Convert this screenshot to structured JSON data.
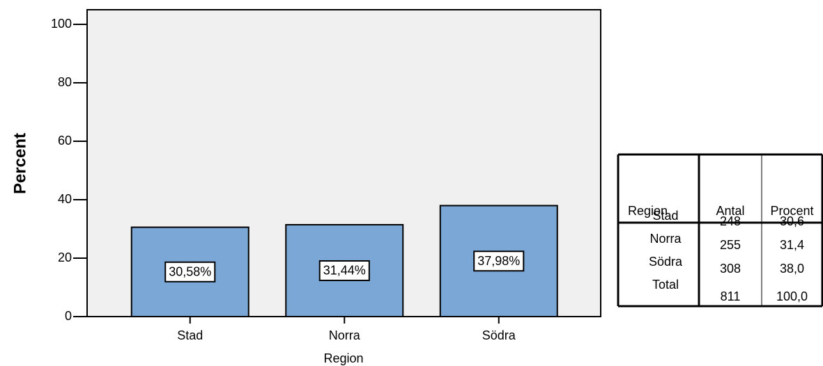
{
  "chart_data": {
    "type": "bar",
    "categories": [
      "Stad",
      "Norra",
      "Södra"
    ],
    "values": [
      30.58,
      31.44,
      37.98
    ],
    "value_labels": [
      "30,58%",
      "31,44%",
      "37,98%"
    ],
    "color": "#7ba7d6",
    "background": "#f0f0f0",
    "ylim": [
      0,
      105
    ],
    "yticks": [
      0,
      20,
      40,
      60,
      80,
      100
    ],
    "y_label": "Percent",
    "x_label": "Region"
  },
  "table": {
    "headers": [
      "Region",
      "Antal",
      "Procent"
    ],
    "rows": [
      [
        "Stad",
        "248",
        "30,6"
      ],
      [
        "Norra",
        "255",
        "31,4"
      ],
      [
        "Södra",
        "308",
        "38,0"
      ],
      [
        "Total",
        "811",
        "100,0"
      ]
    ]
  }
}
